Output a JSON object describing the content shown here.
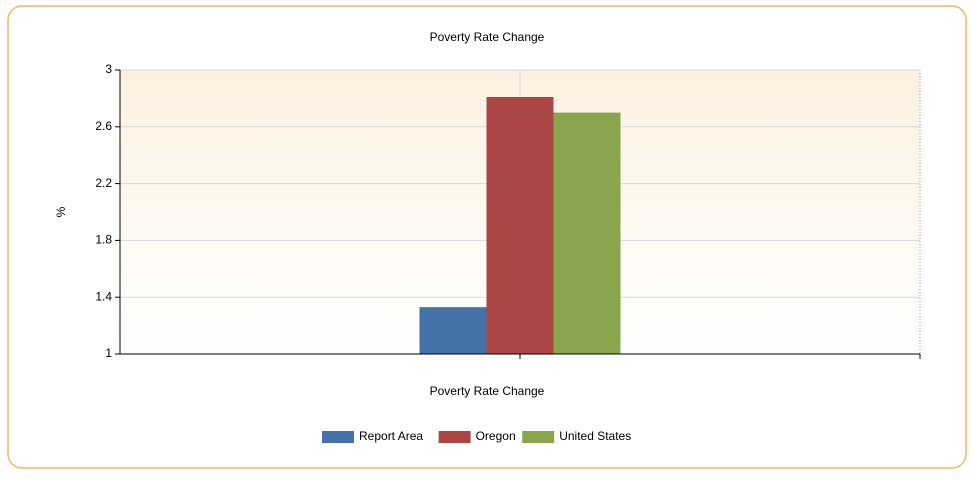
{
  "chart_data": {
    "type": "bar",
    "title": "Poverty Rate Change",
    "x_label": "Poverty Rate Change",
    "y_label": "%",
    "categories": [
      null
    ],
    "series": [
      {
        "name": "Report Area",
        "color": "#4572a7",
        "values": [
          1.33
        ]
      },
      {
        "name": "Oregon",
        "color": "#aa4643",
        "values": [
          2.81
        ]
      },
      {
        "name": "United States",
        "color": "#89a54e",
        "values": [
          2.7
        ]
      }
    ],
    "ylim": [
      1,
      3
    ],
    "yticks": [
      1,
      1.4,
      1.8,
      2.2,
      2.6,
      3
    ],
    "grid": true,
    "legend": "bottom"
  }
}
